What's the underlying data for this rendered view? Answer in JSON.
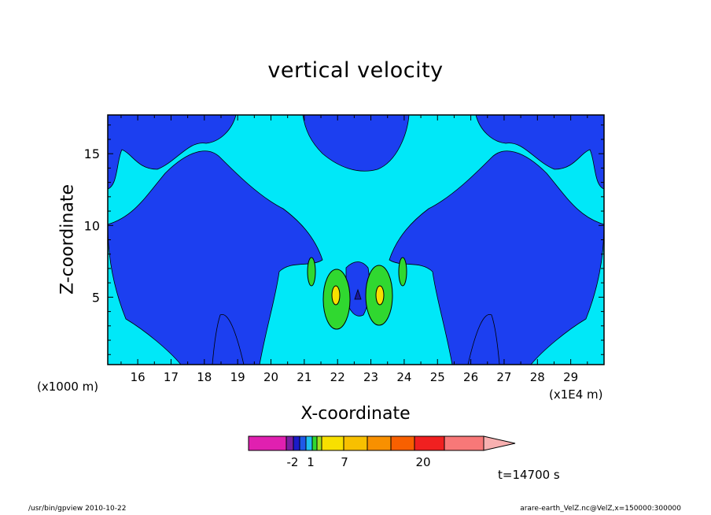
{
  "chart_data": {
    "type": "heatmap",
    "subtype": "filled-contour",
    "title": "vertical velocity",
    "xlabel": "X-coordinate",
    "ylabel": "Z-coordinate",
    "x_unit_label": "(x1E4 m)",
    "y_unit_label": "(x1000 m)",
    "xlim": [
      15.1,
      30
    ],
    "ylim": [
      0.3,
      17.7
    ],
    "x_ticks": [
      16,
      17,
      18,
      19,
      20,
      21,
      22,
      23,
      24,
      25,
      26,
      27,
      28,
      29
    ],
    "y_ticks": [
      5,
      10,
      15
    ],
    "time_label": "t=14700  s",
    "colorbar": {
      "colors": [
        "#e020b0",
        "#7a1fa0",
        "#1b1bc8",
        "#1f5ae8",
        "#20c0f0",
        "#30d830",
        "#a0e020",
        "#f8e000",
        "#f8c000",
        "#f89000",
        "#f86000",
        "#f02020",
        "#f87878",
        "#f8b0b0"
      ],
      "tick_labels": [
        "-2",
        "1",
        "7",
        "20"
      ],
      "extend": "max"
    },
    "regions": [
      {
        "level": "background",
        "color": "#00e8f8"
      },
      {
        "level": "negative",
        "color": "#1c3ff0"
      },
      {
        "level": "positive",
        "color": "#30d830"
      },
      {
        "level": "strong-positive",
        "color": "#f8e000"
      },
      {
        "level": "strong-negative",
        "color": "#1818a0"
      }
    ]
  },
  "footer": {
    "left": "/usr/bin/gpview   2010-10-22",
    "right": "arare-earth_VelZ.nc@VelZ,x=150000:300000"
  }
}
